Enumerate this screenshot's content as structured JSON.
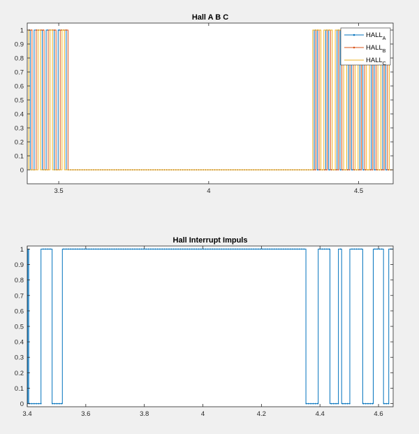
{
  "chart_data": [
    {
      "type": "line",
      "title": "Hall A B C",
      "xlabel": "",
      "ylabel": "",
      "xlim": [
        3.395,
        4.615
      ],
      "ylim": [
        -0.1,
        1.05
      ],
      "xticks": [
        3.5,
        4,
        4.5
      ],
      "xtick_labels": [
        "3.5",
        "4",
        "4.5"
      ],
      "yticks": [
        0,
        0.1,
        0.2,
        0.3,
        0.4,
        0.5,
        0.6,
        0.7,
        0.8,
        0.9,
        1
      ],
      "ytick_labels": [
        "0",
        "0.1",
        "0.2",
        "0.3",
        "0.4",
        "0.5",
        "0.6",
        "0.7",
        "0.8",
        "0.9",
        "1"
      ],
      "grid": false,
      "legend_position": "top-right",
      "series": [
        {
          "name": "HALL_A",
          "label_main": "HALL",
          "label_sub": "A",
          "color": "#0072bd",
          "marker": ".",
          "edges": [
            3.405,
            3.418,
            3.445,
            3.458,
            3.485,
            3.498,
            3.525,
            4.352,
            4.362,
            4.39,
            4.4,
            4.428,
            4.438,
            4.466,
            4.476,
            4.504,
            4.514,
            4.542,
            4.552,
            4.58,
            4.59
          ],
          "start_level": 1
        },
        {
          "name": "HALL_B",
          "label_main": "HALL",
          "label_sub": "B",
          "color": "#d95319",
          "marker": ".",
          "edges": [
            3.411,
            3.425,
            3.451,
            3.465,
            3.491,
            3.505,
            3.531,
            4.357,
            4.368,
            4.395,
            4.406,
            4.433,
            4.444,
            4.471,
            4.482,
            4.509,
            4.52,
            4.547,
            4.558,
            4.585,
            4.596
          ],
          "start_level": 1
        },
        {
          "name": "HALL_C",
          "label_main": "HALL",
          "label_sub": "C",
          "color": "#edb120",
          "marker": "none",
          "edges": [
            3.4,
            3.431,
            3.439,
            3.471,
            3.479,
            3.511,
            3.519,
            4.347,
            4.374,
            4.384,
            4.412,
            4.422,
            4.45,
            4.46,
            4.488,
            4.498,
            4.526,
            4.536,
            4.564,
            4.574,
            4.602
          ],
          "start_level": 1
        }
      ]
    },
    {
      "type": "line",
      "title": "Hall Interrupt Impuls",
      "xlabel": "",
      "ylabel": "",
      "xlim": [
        3.4,
        4.65
      ],
      "ylim": [
        -0.02,
        1.02
      ],
      "xticks": [
        3.4,
        3.6,
        3.8,
        4,
        4.2,
        4.4,
        4.6
      ],
      "xtick_labels": [
        "3.4",
        "3.6",
        "3.8",
        "4",
        "4.2",
        "4.4",
        "4.6"
      ],
      "yticks": [
        0,
        0.1,
        0.2,
        0.3,
        0.4,
        0.5,
        0.6,
        0.7,
        0.8,
        0.9,
        1
      ],
      "ytick_labels": [
        "0",
        "0.1",
        "0.2",
        "0.3",
        "0.4",
        "0.5",
        "0.6",
        "0.7",
        "0.8",
        "0.9",
        "1"
      ],
      "grid": false,
      "series": [
        {
          "name": "",
          "color": "#0072bd",
          "marker": ".",
          "edges": [
            3.402,
            3.405,
            3.447,
            3.485,
            3.52,
            4.352,
            4.394,
            4.434,
            4.463,
            4.474,
            4.502,
            4.546,
            4.582,
            4.617,
            4.635
          ],
          "start_level": 0
        }
      ]
    }
  ]
}
